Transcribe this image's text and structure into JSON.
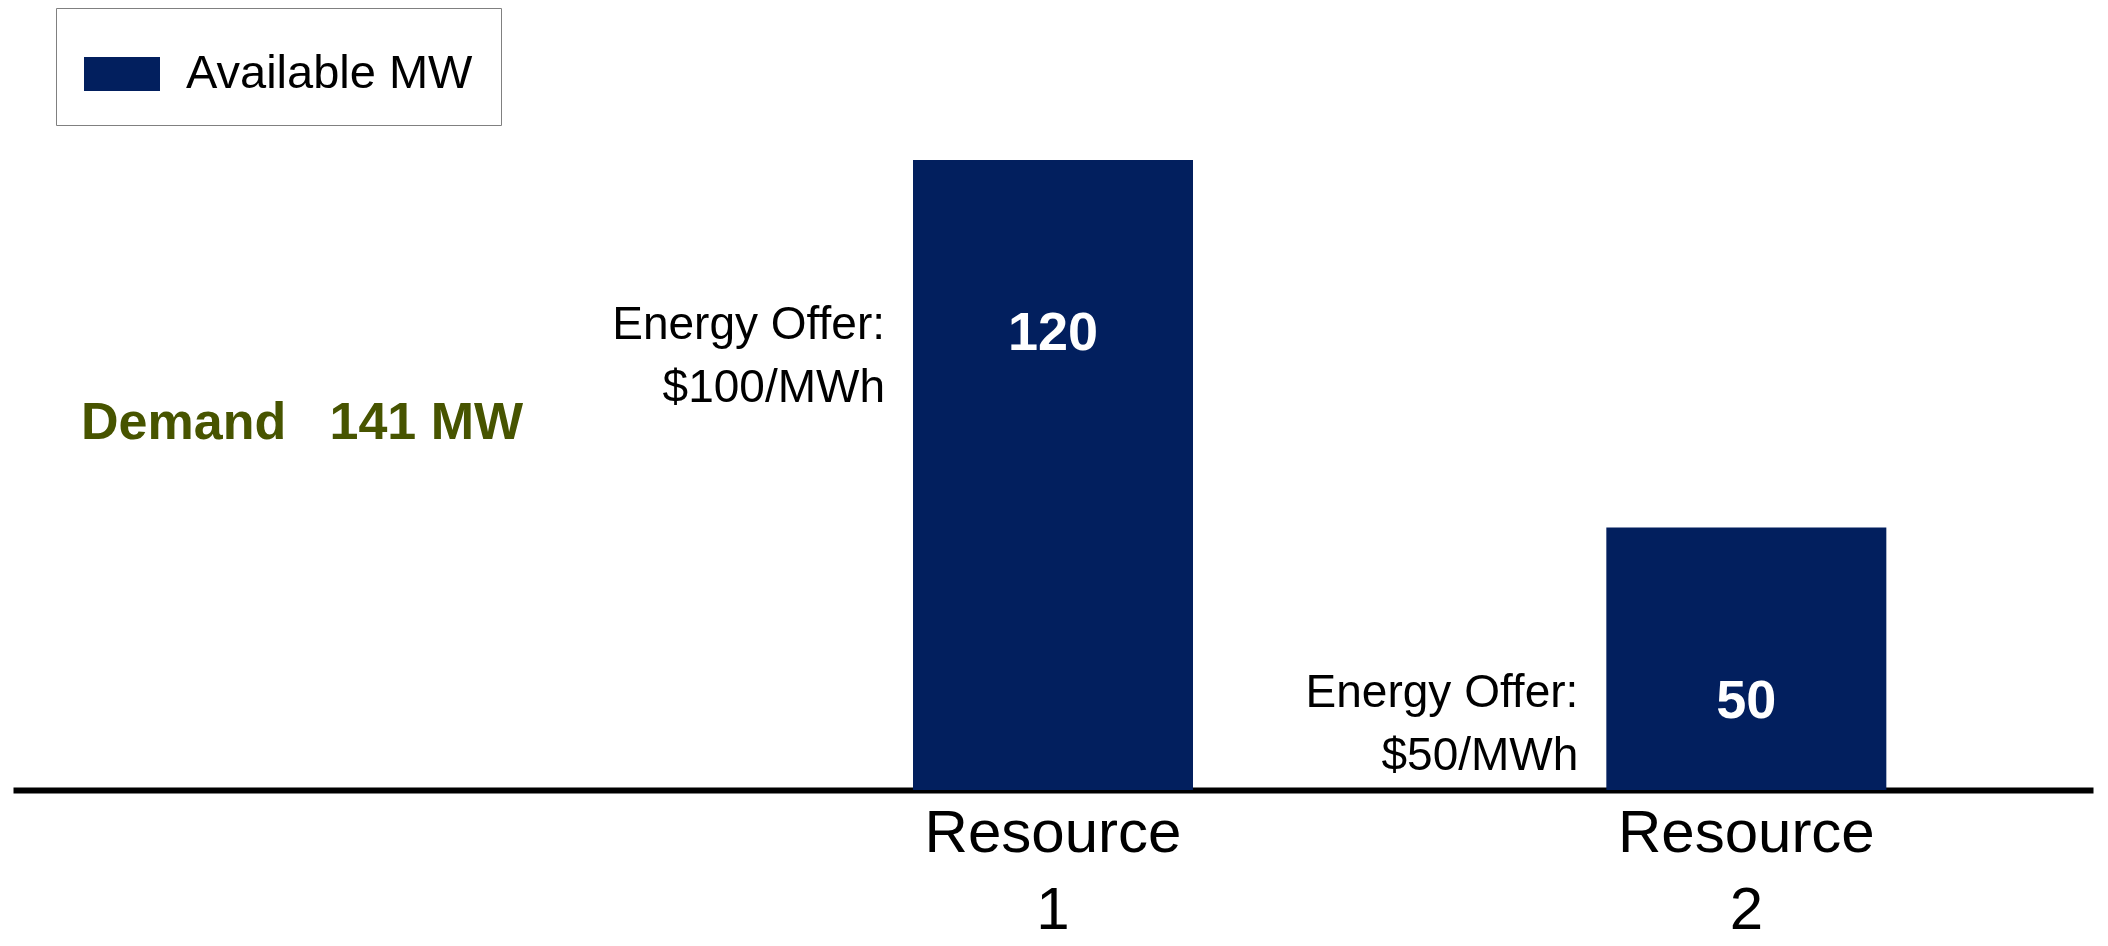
{
  "chart_data": {
    "type": "bar",
    "categories": [
      "Resource 1",
      "Resource 2"
    ],
    "series": [
      {
        "name": "Available MW",
        "color": "#021f5e",
        "values": [
          120,
          50
        ]
      }
    ],
    "data_labels": true,
    "legend": "top left",
    "annotations": [
      "Demand   141 MW",
      "Energy Offer:\n$100/MWh",
      "Energy Offer:\n$50/MWh"
    ]
  }
}
